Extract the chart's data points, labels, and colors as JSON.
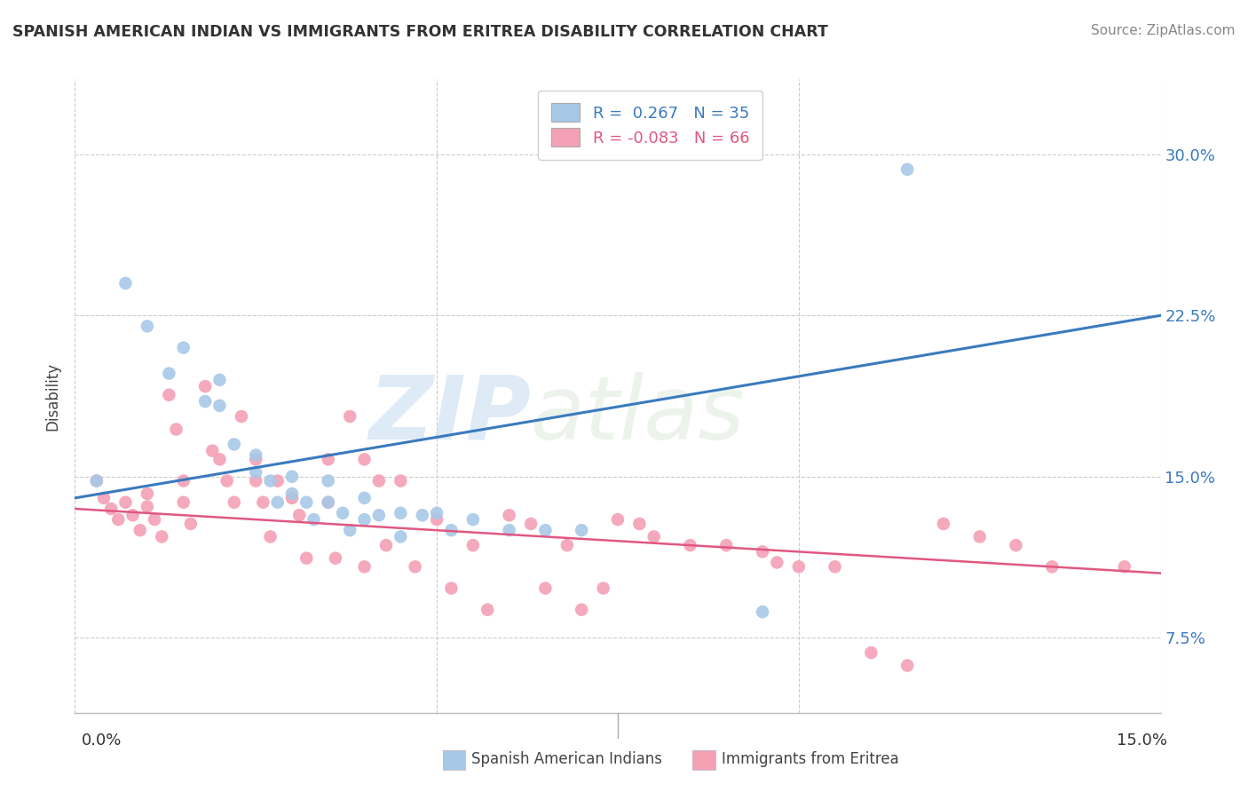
{
  "title": "SPANISH AMERICAN INDIAN VS IMMIGRANTS FROM ERITREA DISABILITY CORRELATION CHART",
  "source": "Source: ZipAtlas.com",
  "ylabel": "Disability",
  "y_tick_labels": [
    "7.5%",
    "15.0%",
    "22.5%",
    "30.0%"
  ],
  "y_tick_values": [
    0.075,
    0.15,
    0.225,
    0.3
  ],
  "xlim": [
    0.0,
    0.15
  ],
  "ylim": [
    0.04,
    0.335
  ],
  "blue_color": "#a8c8e8",
  "pink_color": "#f4a0b5",
  "line_blue": "#3a7abf",
  "line_pink": "#e05880",
  "watermark_zip": "ZIP",
  "watermark_atlas": "atlas",
  "blue_line_x0": 0.0,
  "blue_line_y0": 0.14,
  "blue_line_x1": 0.15,
  "blue_line_y1": 0.225,
  "pink_line_x0": 0.0,
  "pink_line_y0": 0.135,
  "pink_line_x1": 0.15,
  "pink_line_y1": 0.105,
  "blue_scatter_x": [
    0.003,
    0.007,
    0.01,
    0.013,
    0.015,
    0.018,
    0.02,
    0.02,
    0.022,
    0.025,
    0.025,
    0.027,
    0.028,
    0.03,
    0.03,
    0.032,
    0.033,
    0.035,
    0.035,
    0.037,
    0.038,
    0.04,
    0.04,
    0.042,
    0.045,
    0.045,
    0.048,
    0.05,
    0.052,
    0.055,
    0.06,
    0.065,
    0.07,
    0.095,
    0.115
  ],
  "blue_scatter_y": [
    0.148,
    0.24,
    0.22,
    0.198,
    0.21,
    0.185,
    0.195,
    0.183,
    0.165,
    0.16,
    0.152,
    0.148,
    0.138,
    0.15,
    0.142,
    0.138,
    0.13,
    0.148,
    0.138,
    0.133,
    0.125,
    0.14,
    0.13,
    0.132,
    0.133,
    0.122,
    0.132,
    0.133,
    0.125,
    0.13,
    0.125,
    0.125,
    0.125,
    0.087,
    0.293
  ],
  "pink_scatter_x": [
    0.003,
    0.004,
    0.005,
    0.006,
    0.007,
    0.008,
    0.009,
    0.01,
    0.01,
    0.011,
    0.012,
    0.013,
    0.014,
    0.015,
    0.015,
    0.016,
    0.018,
    0.019,
    0.02,
    0.021,
    0.022,
    0.023,
    0.025,
    0.025,
    0.026,
    0.027,
    0.028,
    0.03,
    0.031,
    0.032,
    0.035,
    0.035,
    0.036,
    0.038,
    0.04,
    0.04,
    0.042,
    0.043,
    0.045,
    0.047,
    0.05,
    0.052,
    0.055,
    0.057,
    0.06,
    0.063,
    0.065,
    0.068,
    0.07,
    0.073,
    0.075,
    0.078,
    0.08,
    0.085,
    0.09,
    0.095,
    0.097,
    0.1,
    0.105,
    0.11,
    0.115,
    0.12,
    0.125,
    0.13,
    0.135,
    0.145
  ],
  "pink_scatter_y": [
    0.148,
    0.14,
    0.135,
    0.13,
    0.138,
    0.132,
    0.125,
    0.142,
    0.136,
    0.13,
    0.122,
    0.188,
    0.172,
    0.148,
    0.138,
    0.128,
    0.192,
    0.162,
    0.158,
    0.148,
    0.138,
    0.178,
    0.158,
    0.148,
    0.138,
    0.122,
    0.148,
    0.14,
    0.132,
    0.112,
    0.158,
    0.138,
    0.112,
    0.178,
    0.158,
    0.108,
    0.148,
    0.118,
    0.148,
    0.108,
    0.13,
    0.098,
    0.118,
    0.088,
    0.132,
    0.128,
    0.098,
    0.118,
    0.088,
    0.098,
    0.13,
    0.128,
    0.122,
    0.118,
    0.118,
    0.115,
    0.11,
    0.108,
    0.108,
    0.068,
    0.062,
    0.128,
    0.122,
    0.118,
    0.108,
    0.108
  ]
}
